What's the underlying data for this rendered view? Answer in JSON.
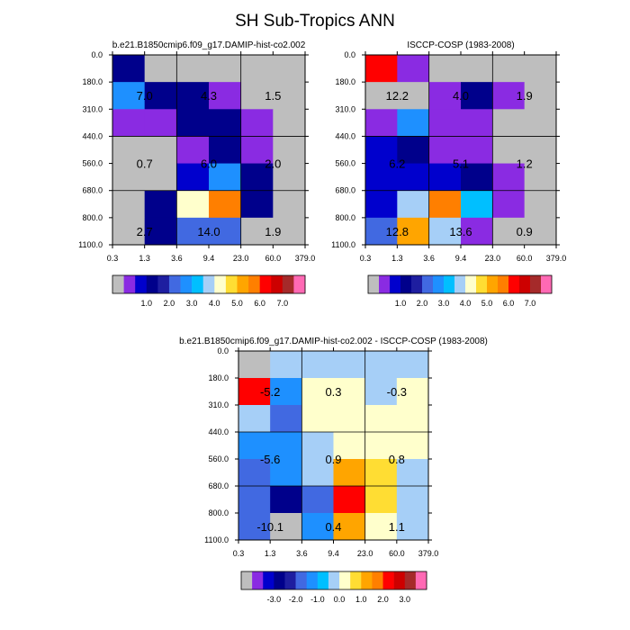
{
  "figure": {
    "title": "SH Sub-Tropics ANN"
  },
  "colors": {
    "missing": "#bebebe",
    "palette_abs": [
      "#bebebe",
      "#8a2be2",
      "#0000cd",
      "#00008b",
      "#1e1ea0",
      "#4169e1",
      "#1e90ff",
      "#00bfff",
      "#a6cff7",
      "#ffffcc",
      "#ffdd33",
      "#ffa500",
      "#ff7f00",
      "#ff0000",
      "#cd0000",
      "#a52a2a",
      "#ff69b4"
    ],
    "cell": {
      "gray": "#bebebe",
      "purple": "#8a2be2",
      "blue": "#0000cd",
      "navy": "#00008b",
      "royal": "#4169e1",
      "dodger": "#1e90ff",
      "sky": "#00bfff",
      "lightblue": "#a6cff7",
      "cream": "#ffffcc",
      "yellow": "#ffdd33",
      "orange": "#ffa500",
      "darkorange": "#ff7f00",
      "red": "#ff0000",
      "darkred": "#cd0000"
    }
  },
  "chart_data": [
    {
      "type": "heatmap",
      "title": "b.e21.B1850cmip6.f09_g17.DAMIP-hist-co2.002",
      "xlabel": "",
      "ylabel": "",
      "x_tick_labels": [
        "0.3",
        "1.3",
        "3.6",
        "9.4",
        "23.0",
        "60.0",
        "379.0"
      ],
      "y_tick_labels": [
        "0.0",
        "180.0",
        "310.0",
        "440.0",
        "560.0",
        "680.0",
        "800.0",
        "1100.0"
      ],
      "cells": [
        [
          "navy",
          "gray",
          "gray",
          "gray",
          "gray",
          "gray"
        ],
        [
          "dodger",
          "navy",
          "navy",
          "purple",
          "gray",
          "gray"
        ],
        [
          "purple",
          "purple",
          "navy",
          "navy",
          "purple",
          "gray"
        ],
        [
          "gray",
          "gray",
          "purple",
          "navy",
          "purple",
          "gray"
        ],
        [
          "gray",
          "gray",
          "blue",
          "dodger",
          "navy",
          "gray"
        ],
        [
          "gray",
          "navy",
          "cream",
          "darkorange",
          "navy",
          "gray"
        ],
        [
          "gray",
          "navy",
          "royal",
          "royal",
          "gray",
          "gray"
        ]
      ],
      "annotations": [
        {
          "text": "7.0",
          "row": 1.5,
          "col": 1
        },
        {
          "text": "4.3",
          "row": 1.5,
          "col": 3
        },
        {
          "text": "1.5",
          "row": 1.5,
          "col": 5
        },
        {
          "text": "0.7",
          "row": 4,
          "col": 1
        },
        {
          "text": "6.0",
          "row": 4,
          "col": 3
        },
        {
          "text": "2.0",
          "row": 4,
          "col": 5
        },
        {
          "text": "2.7",
          "row": 6.5,
          "col": 1
        },
        {
          "text": "14.0",
          "row": 6.5,
          "col": 3
        },
        {
          "text": "1.9",
          "row": 6.5,
          "col": 5
        }
      ],
      "colorbar": {
        "labels": [
          "1.0",
          "2.0",
          "3.0",
          "4.0",
          "5.0",
          "6.0",
          "7.0"
        ]
      }
    },
    {
      "type": "heatmap",
      "title": "ISCCP-COSP (1983-2008)",
      "xlabel": "",
      "ylabel": "",
      "x_tick_labels": [
        "0.3",
        "1.3",
        "3.6",
        "9.4",
        "23.0",
        "60.0",
        "379.0"
      ],
      "y_tick_labels": [
        "0.0",
        "180.0",
        "310.0",
        "440.0",
        "560.0",
        "680.0",
        "800.0",
        "1100.0"
      ],
      "cells": [
        [
          "red",
          "purple",
          "gray",
          "gray",
          "gray",
          "gray"
        ],
        [
          "gray",
          "gray",
          "purple",
          "navy",
          "purple",
          "gray"
        ],
        [
          "purple",
          "dodger",
          "purple",
          "purple",
          "gray",
          "gray"
        ],
        [
          "blue",
          "navy",
          "purple",
          "purple",
          "gray",
          "gray"
        ],
        [
          "blue",
          "blue",
          "blue",
          "navy",
          "purple",
          "gray"
        ],
        [
          "blue",
          "lightblue",
          "darkorange",
          "sky",
          "purple",
          "gray"
        ],
        [
          "royal",
          "orange",
          "lightblue",
          "purple",
          "gray",
          "gray"
        ]
      ],
      "annotations": [
        {
          "text": "12.2",
          "row": 1.5,
          "col": 1
        },
        {
          "text": "4.0",
          "row": 1.5,
          "col": 3
        },
        {
          "text": "1.9",
          "row": 1.5,
          "col": 5
        },
        {
          "text": "6.2",
          "row": 4,
          "col": 1
        },
        {
          "text": "5.1",
          "row": 4,
          "col": 3
        },
        {
          "text": "1.2",
          "row": 4,
          "col": 5
        },
        {
          "text": "12.8",
          "row": 6.5,
          "col": 1
        },
        {
          "text": "13.6",
          "row": 6.5,
          "col": 3
        },
        {
          "text": "0.9",
          "row": 6.5,
          "col": 5
        }
      ],
      "colorbar": {
        "labels": [
          "1.0",
          "2.0",
          "3.0",
          "4.0",
          "5.0",
          "6.0",
          "7.0"
        ]
      }
    },
    {
      "type": "heatmap",
      "title": "b.e21.B1850cmip6.f09_g17.DAMIP-hist-co2.002 - ISCCP-COSP (1983-2008)",
      "xlabel": "",
      "ylabel": "",
      "x_tick_labels": [
        "0.3",
        "1.3",
        "3.6",
        "9.4",
        "23.0",
        "60.0",
        "379.0"
      ],
      "y_tick_labels": [
        "0.0",
        "180.0",
        "310.0",
        "440.0",
        "560.0",
        "680.0",
        "800.0",
        "1100.0"
      ],
      "cells": [
        [
          "gray",
          "lightblue",
          "lightblue",
          "lightblue",
          "lightblue",
          "lightblue"
        ],
        [
          "red",
          "dodger",
          "cream",
          "cream",
          "lightblue",
          "cream"
        ],
        [
          "lightblue",
          "royal",
          "cream",
          "cream",
          "cream",
          "cream"
        ],
        [
          "dodger",
          "dodger",
          "lightblue",
          "cream",
          "cream",
          "cream"
        ],
        [
          "royal",
          "dodger",
          "lightblue",
          "orange",
          "yellow",
          "lightblue"
        ],
        [
          "royal",
          "navy",
          "royal",
          "red",
          "yellow",
          "lightblue"
        ],
        [
          "royal",
          "gray",
          "dodger",
          "orange",
          "cream",
          "lightblue"
        ]
      ],
      "annotations": [
        {
          "text": "-5.2",
          "row": 1.5,
          "col": 1
        },
        {
          "text": "0.3",
          "row": 1.5,
          "col": 3
        },
        {
          "text": "-0.3",
          "row": 1.5,
          "col": 5
        },
        {
          "text": "-5.6",
          "row": 4,
          "col": 1
        },
        {
          "text": "0.9",
          "row": 4,
          "col": 3
        },
        {
          "text": "0.8",
          "row": 4,
          "col": 5
        },
        {
          "text": "-10.1",
          "row": 6.5,
          "col": 1
        },
        {
          "text": "0.4",
          "row": 6.5,
          "col": 3
        },
        {
          "text": "1.1",
          "row": 6.5,
          "col": 5
        }
      ],
      "colorbar": {
        "labels": [
          "-3.0",
          "-2.0",
          "-1.0",
          "0.0",
          "1.0",
          "2.0",
          "3.0"
        ]
      }
    }
  ]
}
